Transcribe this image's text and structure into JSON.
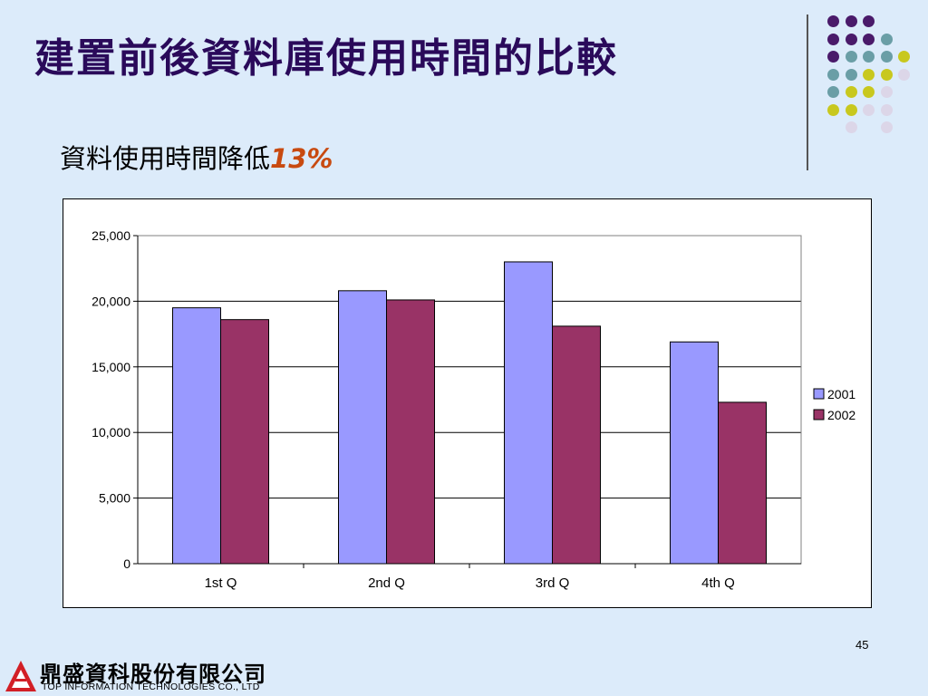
{
  "slide": {
    "title": "建置前後資料庫使用時間的比較",
    "subtitle_text": "資料使用時間降低",
    "subtitle_pct": "13%",
    "page_number": "45"
  },
  "footer": {
    "company_cn": "鼎盛資科股份有限公司",
    "company_en": "TOP INFORMATION TECHNOLOGIES CO., LTD"
  },
  "decor": {
    "dot_colors": [
      "#4a1a6a",
      "#6a9ea6",
      "#c8c81e",
      "#dcd6e8"
    ]
  },
  "chart_data": {
    "type": "bar",
    "categories": [
      "1st Q",
      "2nd Q",
      "3rd Q",
      "4th Q"
    ],
    "series": [
      {
        "name": "2001",
        "values": [
          19500,
          20800,
          23000,
          16900
        ],
        "color": "#9999ff"
      },
      {
        "name": "2002",
        "values": [
          18600,
          20100,
          18100,
          12300
        ],
        "color": "#993366"
      }
    ],
    "ylim": [
      0,
      25000
    ],
    "yticks": [
      "0",
      "5,000",
      "10,000",
      "15,000",
      "20,000",
      "25,000"
    ],
    "ytick_values": [
      0,
      5000,
      10000,
      15000,
      20000,
      25000
    ],
    "grid": true,
    "legend": "right"
  }
}
